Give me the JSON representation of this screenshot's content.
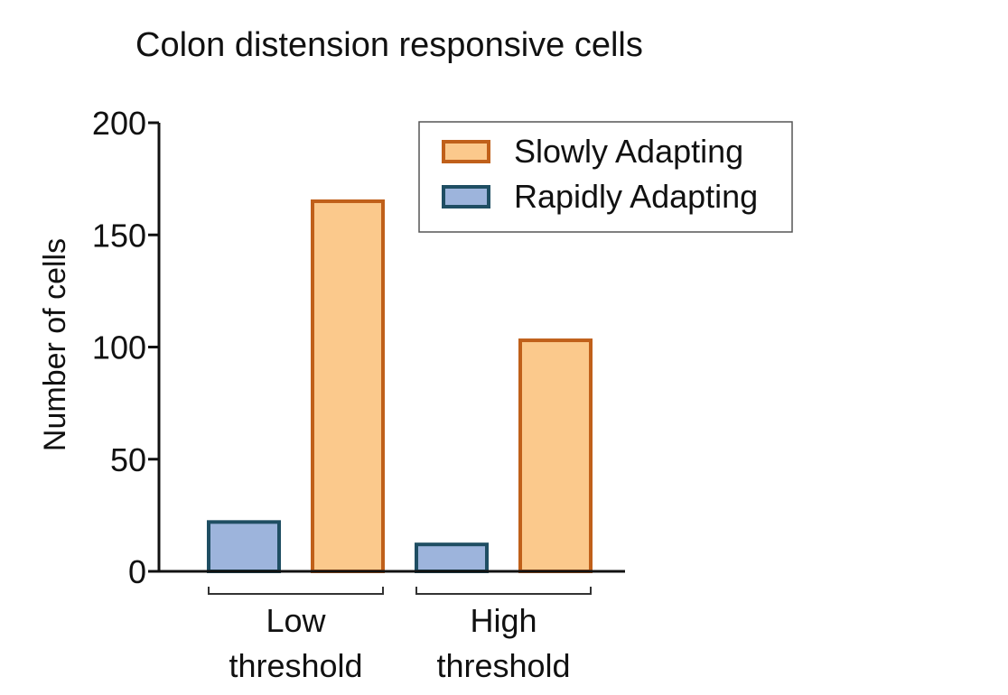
{
  "chart_data": {
    "type": "bar",
    "title": "Colon distension responsive cells",
    "ylabel": "Number of cells",
    "xlabel": "",
    "ylim": [
      0,
      200
    ],
    "yticks": [
      0,
      50,
      100,
      150,
      200
    ],
    "groups": [
      {
        "label_lines": [
          "Low",
          "threshold"
        ]
      },
      {
        "label_lines": [
          "High",
          "threshold"
        ]
      }
    ],
    "series": [
      {
        "name": "Rapidly Adapting",
        "values": [
          22,
          12
        ],
        "fill": "#9db4dc",
        "stroke": "#1f4e63"
      },
      {
        "name": "Slowly Adapting",
        "values": [
          165,
          103
        ],
        "fill": "#fbc98c",
        "stroke": "#c0601a"
      }
    ],
    "legend": {
      "position": "top-right",
      "order": [
        "Slowly Adapting",
        "Rapidly Adapting"
      ]
    },
    "grid": false
  }
}
